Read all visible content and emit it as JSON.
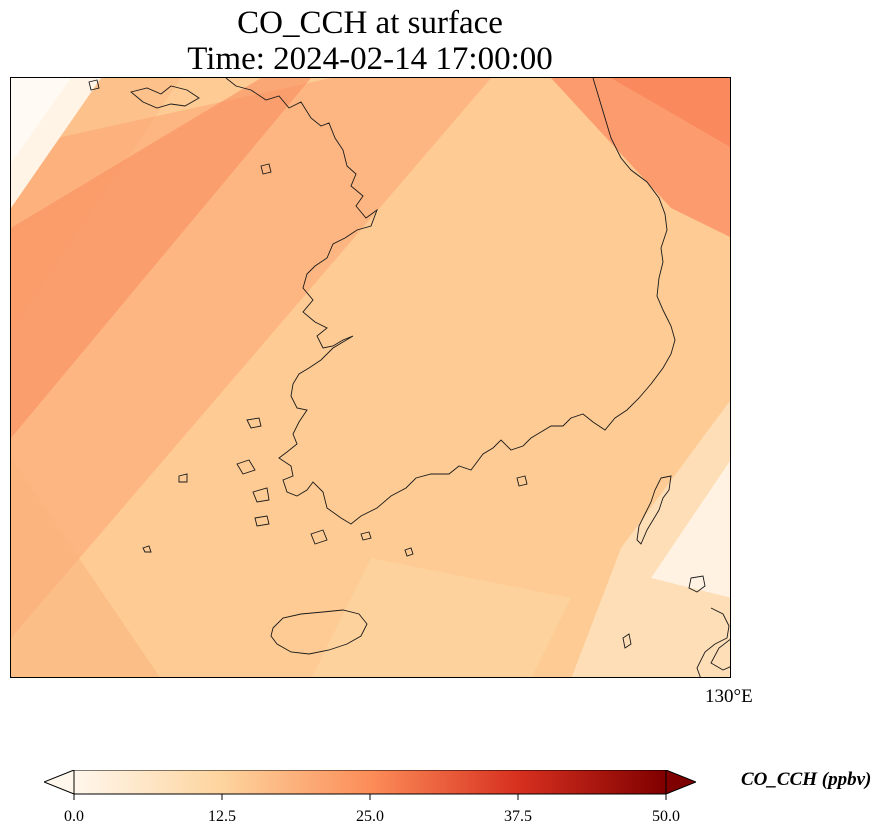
{
  "title": {
    "line1": "CO_CCH at surface",
    "line2": "Time: 2024-02-14 17:00:00"
  },
  "map": {
    "region": "Korean Peninsula (south) with Jeju Island",
    "longitude_label": "130°E",
    "coastline_color": "#1a1a1a"
  },
  "colorbar": {
    "label": "CO_CCH (ppbv)",
    "colormap": "OrRd",
    "min": 0.0,
    "max": 50.0,
    "ticks": [
      "0.0",
      "12.5",
      "25.0",
      "37.5",
      "50.0"
    ],
    "extend": "both",
    "colors": [
      "#fff7ec",
      "#fdd49e",
      "#fc8d59",
      "#d7301f",
      "#7f0000"
    ]
  },
  "field": {
    "dominant_value_range_ppbv": [
      3,
      22
    ],
    "background_color": "#fdcb93",
    "high_band_color": "#fa9464",
    "low_corner_color": "#fff3e4"
  }
}
